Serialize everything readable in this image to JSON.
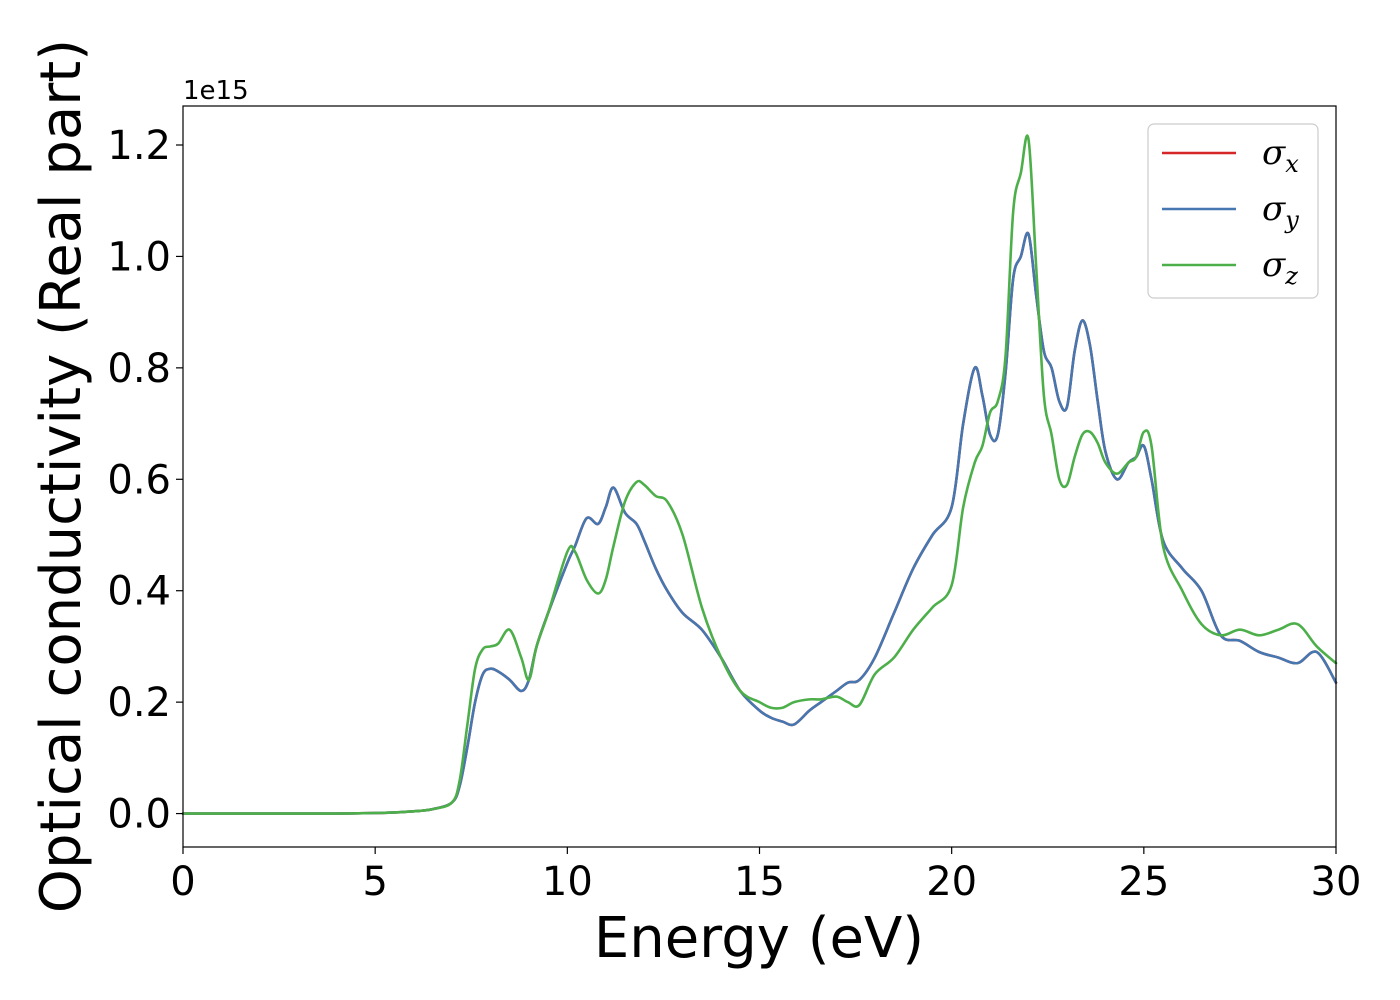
{
  "chart_data": {
    "type": "line",
    "xlabel": "Energy (eV)",
    "ylabel": "Optical conductivity (Real part)",
    "y_offset_text": "1e15",
    "xlim": [
      0,
      30
    ],
    "ylim": [
      -0.06,
      1.27
    ],
    "xticks": [
      0,
      5,
      10,
      15,
      20,
      25,
      30
    ],
    "xtick_labels": [
      "0",
      "5",
      "10",
      "15",
      "20",
      "25",
      "30"
    ],
    "yticks": [
      0.0,
      0.2,
      0.4,
      0.6,
      0.8,
      1.0,
      1.2
    ],
    "ytick_labels": [
      "0.0",
      "0.2",
      "0.4",
      "0.6",
      "0.8",
      "1.0",
      "1.2"
    ],
    "grid": false,
    "legend_position": "top-right",
    "x": [
      0,
      1,
      2,
      3,
      4,
      5,
      5.5,
      6,
      6.5,
      7,
      7.2,
      7.4,
      7.6,
      7.8,
      8,
      8.2,
      8.5,
      8.8,
      9,
      9.2,
      9.5,
      10,
      10.2,
      10.5,
      10.8,
      11,
      11.2,
      11.5,
      11.8,
      12,
      12.3,
      12.6,
      13,
      13.5,
      14,
      14.5,
      15,
      15.3,
      15.6,
      15.9,
      16.3,
      16.6,
      17,
      17.3,
      17.6,
      18,
      18.5,
      19,
      19.5,
      20,
      20.3,
      20.6,
      20.8,
      21,
      21.2,
      21.4,
      21.6,
      21.8,
      22,
      22.2,
      22.4,
      22.6,
      22.8,
      23,
      23.2,
      23.4,
      23.6,
      23.8,
      24,
      24.3,
      24.6,
      24.8,
      25,
      25.2,
      25.5,
      26,
      26.5,
      27,
      27.5,
      28,
      28.5,
      29,
      29.5,
      30
    ],
    "series": [
      {
        "name": "σ",
        "subscript": "x",
        "color": "#d62728",
        "values": [
          0.0,
          0.0,
          0.0,
          0.0,
          0.0,
          0.001,
          0.002,
          0.004,
          0.008,
          0.02,
          0.05,
          0.12,
          0.2,
          0.25,
          0.26,
          0.255,
          0.24,
          0.22,
          0.24,
          0.3,
          0.36,
          0.45,
          0.48,
          0.53,
          0.52,
          0.55,
          0.585,
          0.54,
          0.52,
          0.49,
          0.44,
          0.4,
          0.36,
          0.33,
          0.28,
          0.22,
          0.185,
          0.172,
          0.165,
          0.16,
          0.185,
          0.2,
          0.22,
          0.235,
          0.24,
          0.28,
          0.36,
          0.44,
          0.5,
          0.55,
          0.7,
          0.8,
          0.75,
          0.68,
          0.68,
          0.79,
          0.96,
          1.0,
          1.04,
          0.93,
          0.83,
          0.8,
          0.74,
          0.73,
          0.83,
          0.885,
          0.84,
          0.74,
          0.65,
          0.6,
          0.63,
          0.64,
          0.66,
          0.6,
          0.49,
          0.44,
          0.4,
          0.32,
          0.31,
          0.29,
          0.28,
          0.27,
          0.29,
          0.235
        ]
      },
      {
        "name": "σ",
        "subscript": "y",
        "color": "#4577b0",
        "values": [
          0.0,
          0.0,
          0.0,
          0.0,
          0.0,
          0.001,
          0.002,
          0.004,
          0.008,
          0.02,
          0.05,
          0.12,
          0.2,
          0.25,
          0.26,
          0.255,
          0.24,
          0.22,
          0.24,
          0.3,
          0.36,
          0.45,
          0.48,
          0.53,
          0.52,
          0.55,
          0.585,
          0.54,
          0.52,
          0.49,
          0.44,
          0.4,
          0.36,
          0.33,
          0.28,
          0.22,
          0.185,
          0.172,
          0.165,
          0.16,
          0.185,
          0.2,
          0.22,
          0.235,
          0.24,
          0.28,
          0.36,
          0.44,
          0.5,
          0.55,
          0.7,
          0.8,
          0.75,
          0.68,
          0.68,
          0.79,
          0.96,
          1.0,
          1.04,
          0.93,
          0.83,
          0.8,
          0.74,
          0.73,
          0.83,
          0.885,
          0.84,
          0.74,
          0.65,
          0.6,
          0.63,
          0.64,
          0.66,
          0.6,
          0.49,
          0.44,
          0.4,
          0.32,
          0.31,
          0.29,
          0.28,
          0.27,
          0.29,
          0.235
        ]
      },
      {
        "name": "σ",
        "subscript": "z",
        "color": "#4daf4a",
        "values": [
          0.0,
          0.0,
          0.0,
          0.0,
          0.0,
          0.001,
          0.002,
          0.004,
          0.008,
          0.02,
          0.06,
          0.16,
          0.26,
          0.295,
          0.3,
          0.305,
          0.33,
          0.28,
          0.24,
          0.3,
          0.36,
          0.47,
          0.47,
          0.42,
          0.395,
          0.42,
          0.48,
          0.56,
          0.595,
          0.59,
          0.57,
          0.56,
          0.5,
          0.37,
          0.28,
          0.22,
          0.2,
          0.19,
          0.19,
          0.2,
          0.205,
          0.205,
          0.21,
          0.2,
          0.195,
          0.25,
          0.28,
          0.33,
          0.37,
          0.41,
          0.55,
          0.63,
          0.66,
          0.72,
          0.74,
          0.82,
          1.08,
          1.15,
          1.21,
          0.98,
          0.75,
          0.68,
          0.6,
          0.59,
          0.64,
          0.68,
          0.685,
          0.665,
          0.63,
          0.61,
          0.63,
          0.64,
          0.685,
          0.66,
          0.48,
          0.4,
          0.34,
          0.32,
          0.33,
          0.32,
          0.33,
          0.34,
          0.3,
          0.27
        ]
      }
    ]
  }
}
